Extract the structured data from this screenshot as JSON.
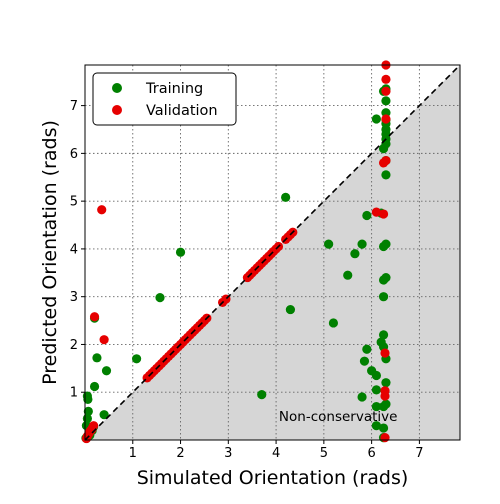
{
  "chart_data": {
    "type": "scatter",
    "xlabel": "Simulated Orientation (rads)",
    "ylabel": "Predicted Orientation (rads)",
    "xlim": [
      0,
      7.85
    ],
    "ylim": [
      0,
      7.85
    ],
    "x_ticks": [
      1,
      2,
      3,
      4,
      5,
      6,
      7
    ],
    "y_ticks": [
      1,
      2,
      3,
      4,
      5,
      6,
      7
    ],
    "grid": true,
    "legend_position": "top-left",
    "annotation": "Non-conservative",
    "reference_line": "y = x",
    "series": [
      {
        "name": "Training",
        "color": "#008000",
        "points": [
          [
            0.02,
            0.04
          ],
          [
            0.03,
            0.3
          ],
          [
            0.05,
            0.45
          ],
          [
            0.07,
            0.6
          ],
          [
            0.06,
            0.85
          ],
          [
            0.05,
            0.92
          ],
          [
            0.1,
            0.1
          ],
          [
            0.15,
            0.2
          ],
          [
            0.18,
            0.28
          ],
          [
            0.2,
            2.55
          ],
          [
            0.2,
            1.12
          ],
          [
            0.25,
            1.72
          ],
          [
            0.4,
            0.53
          ],
          [
            0.45,
            1.45
          ],
          [
            1.08,
            1.7
          ],
          [
            1.57,
            2.98
          ],
          [
            2.0,
            3.93
          ],
          [
            3.7,
            0.95
          ],
          [
            4.2,
            5.08
          ],
          [
            4.3,
            2.73
          ],
          [
            5.1,
            4.1
          ],
          [
            5.2,
            2.45
          ],
          [
            5.5,
            3.45
          ],
          [
            5.65,
            3.9
          ],
          [
            5.8,
            4.1
          ],
          [
            5.8,
            0.9
          ],
          [
            5.85,
            1.65
          ],
          [
            5.9,
            4.7
          ],
          [
            5.9,
            1.9
          ],
          [
            6.0,
            1.45
          ],
          [
            6.1,
            6.72
          ],
          [
            6.1,
            1.35
          ],
          [
            6.1,
            1.05
          ],
          [
            6.1,
            0.7
          ],
          [
            6.1,
            0.3
          ],
          [
            6.2,
            2.05
          ],
          [
            6.2,
            4.75
          ],
          [
            6.25,
            7.3
          ],
          [
            6.25,
            6.1
          ],
          [
            6.25,
            4.05
          ],
          [
            6.25,
            3.35
          ],
          [
            6.25,
            3.0
          ],
          [
            6.25,
            2.2
          ],
          [
            6.25,
            1.95
          ],
          [
            6.25,
            0.7
          ],
          [
            6.25,
            0.25
          ],
          [
            6.25,
            0.05
          ],
          [
            6.3,
            7.35
          ],
          [
            6.3,
            7.1
          ],
          [
            6.3,
            6.85
          ],
          [
            6.3,
            6.7
          ],
          [
            6.3,
            6.62
          ],
          [
            6.3,
            6.5
          ],
          [
            6.3,
            6.4
          ],
          [
            6.3,
            6.3
          ],
          [
            6.3,
            6.2
          ],
          [
            6.3,
            5.85
          ],
          [
            6.3,
            5.55
          ],
          [
            6.3,
            4.1
          ],
          [
            6.3,
            3.4
          ],
          [
            6.3,
            1.7
          ],
          [
            6.3,
            1.2
          ],
          [
            6.3,
            0.75
          ]
        ]
      },
      {
        "name": "Validation",
        "color": "#e60000",
        "points": [
          [
            0.03,
            0.03
          ],
          [
            0.05,
            0.08
          ],
          [
            0.08,
            0.13
          ],
          [
            0.1,
            0.17
          ],
          [
            0.12,
            0.2
          ],
          [
            0.14,
            0.22
          ],
          [
            0.16,
            0.26
          ],
          [
            0.18,
            0.3
          ],
          [
            0.2,
            2.58
          ],
          [
            0.35,
            4.82
          ],
          [
            0.4,
            2.1
          ],
          [
            1.3,
            1.3
          ],
          [
            1.35,
            1.35
          ],
          [
            1.4,
            1.4
          ],
          [
            1.45,
            1.45
          ],
          [
            1.5,
            1.5
          ],
          [
            1.55,
            1.55
          ],
          [
            1.6,
            1.6
          ],
          [
            1.65,
            1.65
          ],
          [
            1.7,
            1.7
          ],
          [
            1.75,
            1.75
          ],
          [
            1.8,
            1.8
          ],
          [
            1.85,
            1.85
          ],
          [
            1.9,
            1.9
          ],
          [
            1.95,
            1.95
          ],
          [
            2.0,
            2.0
          ],
          [
            2.05,
            2.05
          ],
          [
            2.1,
            2.1
          ],
          [
            2.15,
            2.15
          ],
          [
            2.2,
            2.2
          ],
          [
            2.25,
            2.25
          ],
          [
            2.3,
            2.3
          ],
          [
            2.35,
            2.35
          ],
          [
            2.4,
            2.4
          ],
          [
            2.45,
            2.45
          ],
          [
            2.5,
            2.5
          ],
          [
            2.55,
            2.55
          ],
          [
            2.88,
            2.88
          ],
          [
            2.95,
            2.95
          ],
          [
            3.4,
            3.4
          ],
          [
            3.45,
            3.45
          ],
          [
            3.5,
            3.5
          ],
          [
            3.55,
            3.55
          ],
          [
            3.6,
            3.6
          ],
          [
            3.65,
            3.65
          ],
          [
            3.7,
            3.7
          ],
          [
            3.75,
            3.75
          ],
          [
            3.8,
            3.8
          ],
          [
            3.85,
            3.85
          ],
          [
            3.9,
            3.9
          ],
          [
            3.95,
            3.95
          ],
          [
            4.0,
            4.0
          ],
          [
            4.05,
            4.05
          ],
          [
            4.2,
            4.2
          ],
          [
            4.25,
            4.25
          ],
          [
            4.3,
            4.3
          ],
          [
            4.35,
            4.35
          ],
          [
            6.1,
            4.77
          ],
          [
            6.25,
            4.73
          ],
          [
            6.25,
            5.8
          ],
          [
            6.28,
            1.03
          ],
          [
            6.28,
            0.92
          ],
          [
            6.28,
            1.82
          ],
          [
            6.28,
            0.05
          ],
          [
            6.3,
            7.85
          ],
          [
            6.3,
            7.55
          ],
          [
            6.3,
            7.3
          ],
          [
            6.3,
            6.72
          ],
          [
            6.3,
            5.85
          ]
        ]
      }
    ]
  }
}
